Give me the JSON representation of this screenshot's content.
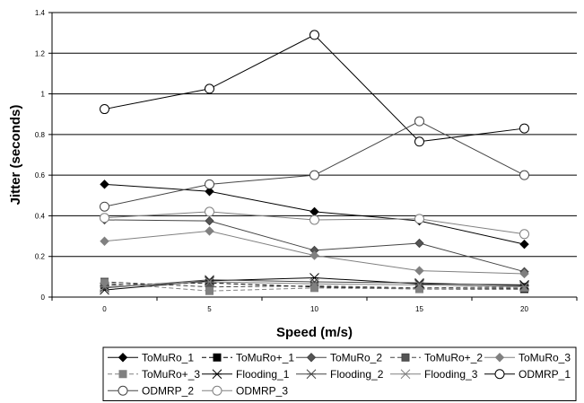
{
  "chart_data": {
    "type": "line",
    "title": "",
    "xlabel": "Speed (m/s)",
    "ylabel": "Jitter (seconds)",
    "x": [
      0,
      5,
      10,
      15,
      20
    ],
    "x_ticks": [
      "0",
      "5",
      "10",
      "15",
      "20"
    ],
    "y_ticks": [
      "0",
      "0.2",
      "0.4",
      "0.6",
      "0.8",
      "1",
      "1.2",
      "1.4"
    ],
    "ylim": [
      0,
      1.4
    ],
    "grid": "horizontal",
    "legend_position": "bottom",
    "series": [
      {
        "name": "ToMuRo_1",
        "values": [
          0.555,
          0.52,
          0.42,
          0.375,
          0.26
        ],
        "marker": "diamond",
        "fill": "#000000",
        "color": "#000000",
        "dash": ""
      },
      {
        "name": "ToMuRo+_1",
        "values": [
          0.06,
          0.07,
          0.05,
          0.04,
          0.04
        ],
        "marker": "square",
        "fill": "#000000",
        "color": "#000000",
        "dash": "5,3"
      },
      {
        "name": "ToMuRo_2",
        "values": [
          0.38,
          0.375,
          0.23,
          0.265,
          0.125
        ],
        "marker": "diamond",
        "fill": "#555555",
        "color": "#444444",
        "dash": ""
      },
      {
        "name": "ToMuRo+_2",
        "values": [
          0.075,
          0.05,
          0.055,
          0.045,
          0.05
        ],
        "marker": "square",
        "fill": "#555555",
        "color": "#444444",
        "dash": "5,3"
      },
      {
        "name": "ToMuRo_3",
        "values": [
          0.275,
          0.325,
          0.205,
          0.13,
          0.115
        ],
        "marker": "diamond",
        "fill": "#808080",
        "color": "#808080",
        "dash": ""
      },
      {
        "name": "ToMuRo+_3",
        "values": [
          0.07,
          0.03,
          0.045,
          0.04,
          0.045
        ],
        "marker": "square",
        "fill": "#808080",
        "color": "#808080",
        "dash": "5,3"
      },
      {
        "name": "Flooding_1",
        "values": [
          0.035,
          0.08,
          0.095,
          0.065,
          0.06
        ],
        "marker": "asterisk",
        "fill": "none",
        "color": "#000000",
        "dash": ""
      },
      {
        "name": "Flooding_2",
        "values": [
          0.045,
          0.085,
          0.075,
          0.07,
          0.055
        ],
        "marker": "asterisk",
        "fill": "none",
        "color": "#444444",
        "dash": ""
      },
      {
        "name": "Flooding_3",
        "values": [
          0.05,
          0.075,
          0.065,
          0.06,
          0.05
        ],
        "marker": "asterisk",
        "fill": "none",
        "color": "#808080",
        "dash": ""
      },
      {
        "name": "ODMRP_1",
        "values": [
          0.925,
          1.025,
          1.29,
          0.765,
          0.83
        ],
        "marker": "circle",
        "fill": "#ffffff",
        "color": "#000000",
        "dash": ""
      },
      {
        "name": "ODMRP_2",
        "values": [
          0.445,
          0.555,
          0.6,
          0.865,
          0.6
        ],
        "marker": "circle",
        "fill": "#ffffff",
        "color": "#444444",
        "dash": ""
      },
      {
        "name": "ODMRP_3",
        "values": [
          0.39,
          0.42,
          0.38,
          0.385,
          0.31
        ],
        "marker": "circle",
        "fill": "#ffffff",
        "color": "#808080",
        "dash": ""
      }
    ]
  }
}
